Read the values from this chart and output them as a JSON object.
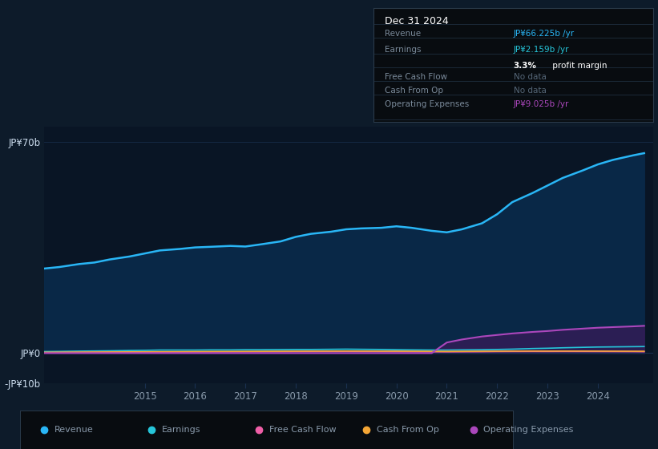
{
  "background_color": "#0d1b2a",
  "plot_bg_color": "#091525",
  "years": [
    2013.0,
    2013.3,
    2013.7,
    2014.0,
    2014.3,
    2014.7,
    2015.0,
    2015.3,
    2015.7,
    2016.0,
    2016.3,
    2016.7,
    2017.0,
    2017.3,
    2017.7,
    2018.0,
    2018.3,
    2018.7,
    2019.0,
    2019.3,
    2019.7,
    2020.0,
    2020.3,
    2020.7,
    2021.0,
    2021.3,
    2021.7,
    2022.0,
    2022.3,
    2022.7,
    2023.0,
    2023.3,
    2023.7,
    2024.0,
    2024.3,
    2024.7,
    2024.92
  ],
  "revenue": [
    28,
    28.5,
    29.5,
    30,
    31,
    32,
    33,
    34,
    34.5,
    35,
    35.2,
    35.5,
    35.3,
    36,
    37,
    38.5,
    39.5,
    40.2,
    41.0,
    41.3,
    41.5,
    42.0,
    41.5,
    40.5,
    40.0,
    41.0,
    43.0,
    46.0,
    50.0,
    53.0,
    55.5,
    58.0,
    60.5,
    62.5,
    64.0,
    65.5,
    66.225
  ],
  "earnings": [
    0.5,
    0.55,
    0.65,
    0.7,
    0.75,
    0.85,
    0.9,
    1.0,
    1.0,
    1.0,
    1.05,
    1.05,
    1.1,
    1.1,
    1.15,
    1.2,
    1.2,
    1.25,
    1.3,
    1.25,
    1.2,
    1.1,
    1.05,
    1.0,
    1.0,
    1.05,
    1.1,
    1.2,
    1.3,
    1.5,
    1.6,
    1.75,
    1.9,
    2.0,
    2.05,
    2.12,
    2.159
  ],
  "free_cash_flow": [
    0.15,
    0.18,
    0.22,
    0.25,
    0.28,
    0.3,
    0.32,
    0.33,
    0.35,
    0.38,
    0.4,
    0.42,
    0.43,
    0.44,
    0.46,
    0.5,
    0.52,
    0.53,
    0.55,
    0.52,
    0.5,
    0.48,
    0.45,
    0.42,
    0.4,
    0.42,
    0.45,
    0.5,
    0.52,
    0.53,
    0.52,
    0.53,
    0.52,
    0.51,
    0.5,
    0.48,
    0.45
  ],
  "cash_from_op": [
    0.25,
    0.28,
    0.32,
    0.35,
    0.38,
    0.4,
    0.42,
    0.45,
    0.47,
    0.5,
    0.52,
    0.53,
    0.55,
    0.57,
    0.6,
    0.62,
    0.63,
    0.65,
    0.67,
    0.65,
    0.63,
    0.62,
    0.6,
    0.57,
    0.55,
    0.57,
    0.6,
    0.62,
    0.65,
    0.67,
    0.66,
    0.67,
    0.66,
    0.65,
    0.63,
    0.61,
    0.6
  ],
  "operating_expenses": [
    0.0,
    0.0,
    0.0,
    0.0,
    0.0,
    0.0,
    0.0,
    0.0,
    0.0,
    0.0,
    0.0,
    0.0,
    0.0,
    0.0,
    0.0,
    0.0,
    0.0,
    0.0,
    0.0,
    0.0,
    0.0,
    0.0,
    0.0,
    0.0,
    3.5,
    4.5,
    5.5,
    6.0,
    6.5,
    7.0,
    7.3,
    7.7,
    8.1,
    8.4,
    8.6,
    8.85,
    9.025
  ],
  "revenue_color": "#29b6f6",
  "earnings_color": "#26c6da",
  "free_cash_flow_color": "#ef5fa7",
  "cash_from_op_color": "#f4a636",
  "operating_expenses_color": "#ab47bc",
  "revenue_fill_color": "#0a2a4a",
  "revenue_fill_alpha": 0.95,
  "opex_fill_color": "#3a1a5a",
  "opex_fill_alpha": 0.7,
  "grid_color": "#1a3050",
  "text_color": "#8899aa",
  "ylim": [
    -10,
    75
  ],
  "xlim_start": 2013.0,
  "xlim_end": 2025.1,
  "ytick_positions": [
    -10,
    0,
    70
  ],
  "ytick_labels": [
    "-JP¥10b",
    "JP¥0",
    "JP¥70b"
  ],
  "xtick_positions": [
    2015,
    2016,
    2017,
    2018,
    2019,
    2020,
    2021,
    2022,
    2023,
    2024
  ],
  "legend_items": [
    "Revenue",
    "Earnings",
    "Free Cash Flow",
    "Cash From Op",
    "Operating Expenses"
  ],
  "legend_colors": [
    "#29b6f6",
    "#26c6da",
    "#ef5fa7",
    "#f4a636",
    "#ab47bc"
  ],
  "tooltip_title": "Dec 31 2024",
  "tooltip_rows": [
    {
      "label": "Revenue",
      "value": "JP¥66.225b /yr",
      "value_color": "#29b6f6",
      "divider": true
    },
    {
      "label": "Earnings",
      "value": "JP¥2.159b /yr",
      "value_color": "#26c6da",
      "divider": false
    },
    {
      "label": "",
      "value": "3.3% profit margin",
      "value_color": "white",
      "divider": true,
      "bold_prefix": "3.3%"
    },
    {
      "label": "Free Cash Flow",
      "value": "No data",
      "value_color": "#556677",
      "divider": true
    },
    {
      "label": "Cash From Op",
      "value": "No data",
      "value_color": "#556677",
      "divider": true
    },
    {
      "label": "Operating Expenses",
      "value": "JP¥9.025b /yr",
      "value_color": "#ab47bc",
      "divider": true
    }
  ]
}
